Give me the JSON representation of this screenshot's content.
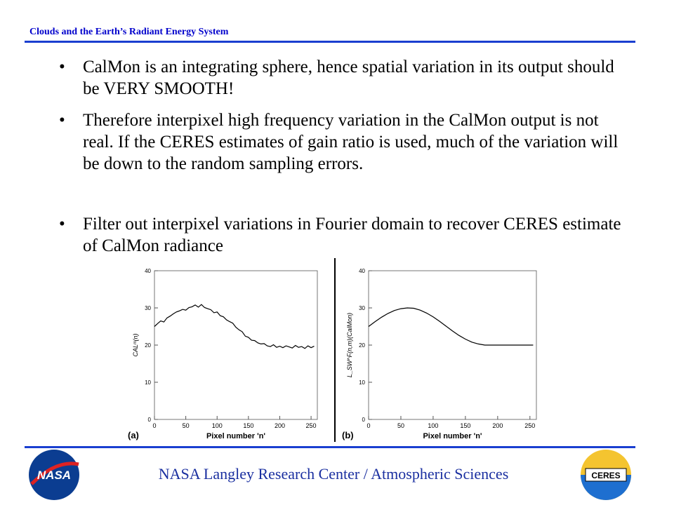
{
  "header": {
    "title": "Clouds and the Earth’s Radiant Energy System"
  },
  "bullets": [
    "CalMon is an integrating sphere, hence spatial variation in its output should be VERY SMOOTH!",
    "Therefore interpixel high frequency variation in the CalMon output is not real. If the CERES estimates of gain ratio is used, much of the variation will be down to the random sampling errors.",
    "Filter out interpixel variations in Fourier domain to recover CERES estimate of CalMon radiance"
  ],
  "chart_data": [
    {
      "type": "line",
      "panel_label": "(a)",
      "x_label": "Pixel number 'n'",
      "y_label": "CALᵐ(n)",
      "color": "#000000",
      "x": [
        0,
        5,
        10,
        15,
        20,
        25,
        30,
        35,
        40,
        45,
        50,
        55,
        60,
        65,
        70,
        75,
        80,
        85,
        90,
        95,
        100,
        105,
        110,
        115,
        120,
        125,
        130,
        135,
        140,
        145,
        150,
        155,
        160,
        165,
        170,
        175,
        180,
        185,
        190,
        195,
        200,
        205,
        210,
        215,
        220,
        225,
        230,
        235,
        240,
        245,
        250,
        255
      ],
      "values": [
        25,
        25.8,
        26.5,
        26.2,
        27.3,
        27.8,
        28.4,
        28.9,
        29.2,
        29.6,
        29.4,
        30.1,
        30.3,
        30.8,
        30.2,
        30.9,
        30.1,
        29.8,
        29.5,
        28.7,
        28.9,
        27.9,
        27.6,
        26.8,
        26.3,
        25.9,
        24.8,
        24.1,
        23.6,
        22.4,
        22.1,
        21.3,
        21.2,
        20.6,
        20.3,
        20.4,
        19.8,
        19.6,
        20.1,
        19.4,
        19.7,
        19.3,
        19.8,
        19.5,
        19.2,
        19.9,
        19.4,
        19.6,
        19.1,
        19.8,
        19.3,
        19.7
      ],
      "xlim": [
        0,
        260
      ],
      "xticks": [
        0,
        50,
        100,
        150,
        200,
        250
      ],
      "ylim": [
        0,
        40
      ],
      "yticks": [
        0,
        10,
        20,
        30,
        40
      ]
    },
    {
      "type": "line",
      "panel_label": "(b)",
      "x_label": "Pixel number 'n'",
      "y_label": "L_SW^F(n,m)(CalMon)",
      "color": "#000000",
      "x": [
        0,
        10,
        20,
        30,
        40,
        50,
        60,
        70,
        80,
        90,
        100,
        110,
        120,
        130,
        140,
        150,
        160,
        170,
        180,
        190,
        200,
        210,
        220,
        230,
        240,
        250,
        255
      ],
      "values": [
        25,
        26.3,
        27.5,
        28.5,
        29.3,
        29.8,
        30,
        29.9,
        29.4,
        28.6,
        27.6,
        26.4,
        25.1,
        23.8,
        22.6,
        21.6,
        20.8,
        20.3,
        20,
        20,
        20,
        20,
        20,
        20,
        20,
        20,
        20
      ],
      "xlim": [
        0,
        260
      ],
      "xticks": [
        0,
        50,
        100,
        150,
        200,
        250
      ],
      "ylim": [
        0,
        40
      ],
      "yticks": [
        0,
        10,
        20,
        30,
        40
      ]
    }
  ],
  "footer": {
    "text": "NASA Langley Research Center / Atmospheric Sciences",
    "left_logo": "NASA",
    "right_logo": "CERES"
  }
}
